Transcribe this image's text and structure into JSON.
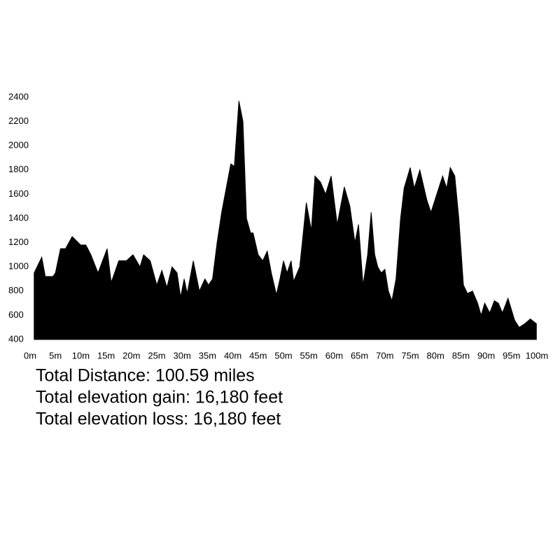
{
  "chart_data": {
    "type": "area",
    "x": [
      0.8,
      2.3,
      3.0,
      4.5,
      5.0,
      6.0,
      7.0,
      8.3,
      10.0,
      11.0,
      12.0,
      13.4,
      15.2,
      16.0,
      17.5,
      19.0,
      20.3,
      21.7,
      22.4,
      23.7,
      25.0,
      26.0,
      27.0,
      28.0,
      29.0,
      29.7,
      30.4,
      31.0,
      32.2,
      33.4,
      34.5,
      35.2,
      36.0,
      36.9,
      37.8,
      39.6,
      40.3,
      41.2,
      42.0,
      42.7,
      43.5,
      44.0,
      45.0,
      45.9,
      46.8,
      47.6,
      48.6,
      49.3,
      50.0,
      50.7,
      51.5,
      52.0,
      53.2,
      53.7,
      54.5,
      55.5,
      56.2,
      57.3,
      58.3,
      59.4,
      60.6,
      62.0,
      63.1,
      64.1,
      64.8,
      65.7,
      66.6,
      67.3,
      68.0,
      68.6,
      69.3,
      70.0,
      70.7,
      71.4,
      72.2,
      73.1,
      73.8,
      75.0,
      75.8,
      76.9,
      78.3,
      79.1,
      80.4,
      81.4,
      82.2,
      82.9,
      83.8,
      84.6,
      85.5,
      86.3,
      87.3,
      88.3,
      89.0,
      89.7,
      90.7,
      91.6,
      92.4,
      93.2,
      94.3,
      95.6,
      96.5,
      97.6,
      98.7,
      99.9
    ],
    "values": [
      950,
      1080,
      920,
      920,
      950,
      1150,
      1150,
      1250,
      1180,
      1180,
      1100,
      950,
      1150,
      870,
      1050,
      1050,
      1100,
      1000,
      1100,
      1050,
      850,
      970,
      830,
      1000,
      950,
      750,
      900,
      780,
      1050,
      800,
      900,
      850,
      900,
      1200,
      1450,
      1850,
      1830,
      2370,
      2200,
      1400,
      1280,
      1280,
      1100,
      1050,
      1130,
      950,
      770,
      900,
      1050,
      950,
      1050,
      880,
      1000,
      1200,
      1530,
      1300,
      1750,
      1700,
      1600,
      1750,
      1350,
      1660,
      1500,
      1200,
      1350,
      850,
      1100,
      1450,
      1100,
      1000,
      950,
      980,
      800,
      720,
      900,
      1400,
      1650,
      1820,
      1650,
      1800,
      1550,
      1450,
      1620,
      1750,
      1650,
      1820,
      1750,
      1400,
      850,
      780,
      800,
      700,
      600,
      700,
      620,
      720,
      700,
      620,
      740,
      560,
      500,
      530,
      570,
      530
    ],
    "color": "#000000",
    "xlim": [
      0,
      100
    ],
    "xticks": [
      {
        "value": 0,
        "label": "0m"
      },
      {
        "value": 5,
        "label": "5m"
      },
      {
        "value": 10,
        "label": "10m"
      },
      {
        "value": 15,
        "label": "15m"
      },
      {
        "value": 20,
        "label": "20m"
      },
      {
        "value": 25,
        "label": "25m"
      },
      {
        "value": 30,
        "label": "30m"
      },
      {
        "value": 35,
        "label": "35m"
      },
      {
        "value": 40,
        "label": "40m"
      },
      {
        "value": 45,
        "label": "45m"
      },
      {
        "value": 50,
        "label": "50m"
      },
      {
        "value": 55,
        "label": "55m"
      },
      {
        "value": 60,
        "label": "60m"
      },
      {
        "value": 65,
        "label": "65m"
      },
      {
        "value": 70,
        "label": "70m"
      },
      {
        "value": 75,
        "label": "75m"
      },
      {
        "value": 80,
        "label": "80m"
      },
      {
        "value": 85,
        "label": "85m"
      },
      {
        "value": 90,
        "label": "90m"
      },
      {
        "value": 95,
        "label": "95m"
      },
      {
        "value": 100,
        "label": "100m"
      }
    ],
    "ylim": [
      400,
      2400
    ],
    "yticks": [
      400,
      600,
      800,
      1000,
      1200,
      1400,
      1600,
      1800,
      2000,
      2200,
      2400
    ],
    "grid": false,
    "annotations": [
      "Total Distance: 100.59 miles",
      "Total elevation gain: 16,180 feet",
      "Total elevation loss: 16,180 feet"
    ]
  }
}
